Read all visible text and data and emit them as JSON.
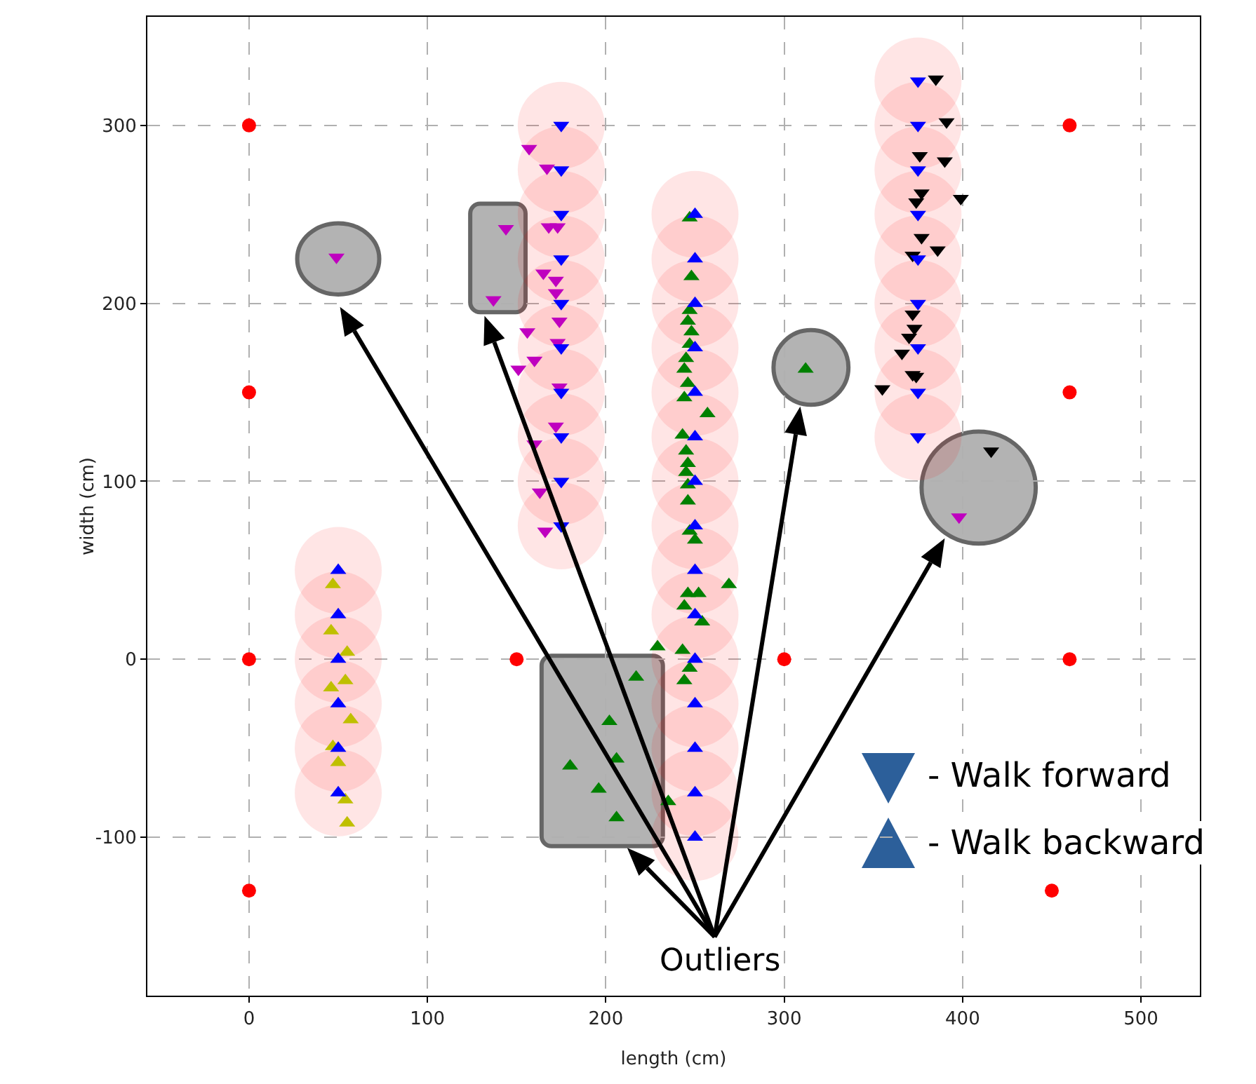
{
  "chart_data": {
    "type": "scatter",
    "xlabel": "length (cm)",
    "ylabel": "width (cm)",
    "xlim": [
      -57,
      533
    ],
    "ylim": [
      -189,
      361
    ],
    "xticks": [
      0,
      100,
      200,
      300,
      400,
      500
    ],
    "yticks": [
      -100,
      0,
      100,
      200,
      300
    ],
    "grid": true,
    "series": [
      {
        "type": "bubble",
        "color": "#ff0000",
        "marker": "circle",
        "x": [
          50,
          50,
          50,
          50,
          50,
          50,
          175,
          175,
          175,
          175,
          175,
          175,
          175,
          175,
          175,
          175,
          250,
          250,
          250,
          250,
          250,
          250,
          250,
          250,
          250,
          250,
          250,
          250,
          250,
          250,
          250,
          375,
          375,
          375,
          375,
          375,
          375,
          375,
          375,
          375
        ],
        "values": [
          50,
          25,
          0,
          -25,
          -50,
          -75,
          300,
          275,
          250,
          225,
          200,
          175,
          150,
          125,
          100,
          75,
          250,
          225,
          200,
          175,
          150,
          125,
          100,
          75,
          50,
          25,
          0,
          -25,
          -50,
          -75,
          -100,
          325,
          300,
          275,
          250,
          225,
          200,
          175,
          150,
          125
        ],
        "sizes": [
          1,
          1,
          1,
          1,
          1,
          1,
          1,
          1,
          1,
          1,
          1,
          1,
          1,
          1,
          1,
          1,
          1,
          1,
          1,
          1,
          1,
          1,
          1,
          1,
          1,
          1,
          1,
          1,
          1,
          1,
          1,
          1,
          1,
          1,
          1,
          1,
          1,
          1,
          1,
          1
        ]
      },
      {
        "color": "#ff0000",
        "marker": "circle",
        "x": [
          0,
          0,
          0,
          0,
          150,
          300,
          460,
          460,
          460,
          450
        ],
        "values": [
          300,
          150,
          0,
          -130,
          0,
          0,
          300,
          150,
          0,
          -130
        ]
      },
      {
        "color": "#bf00bf",
        "marker": "triangle-down",
        "x": [
          157,
          167,
          168,
          173,
          144,
          165,
          172,
          172,
          137,
          174,
          156,
          173,
          160,
          151,
          174,
          172,
          160,
          163,
          166,
          49,
          398
        ],
        "values": [
          287,
          276,
          243,
          243,
          242,
          217,
          213,
          206,
          202,
          190,
          184,
          178,
          168,
          163,
          153,
          131,
          121,
          94,
          72,
          226,
          80
        ]
      },
      {
        "color": "#000000",
        "marker": "triangle-down",
        "x": [
          385,
          391,
          376,
          390,
          377,
          399,
          374,
          377,
          386,
          372,
          372,
          373,
          370,
          366,
          372,
          374,
          355,
          416
        ],
        "values": [
          326,
          302,
          283,
          280,
          262,
          259,
          257,
          237,
          230,
          227,
          194,
          186,
          181,
          172,
          160,
          159,
          152,
          117
        ]
      },
      {
        "color": "#bfbf00",
        "marker": "triangle",
        "x": [
          47,
          46,
          55,
          54,
          46,
          57,
          47,
          50,
          54,
          55
        ],
        "values": [
          42,
          16,
          4,
          -12,
          -16,
          -34,
          -49,
          -58,
          -79,
          -92
        ]
      },
      {
        "color": "#008000",
        "marker": "triangle",
        "x": [
          247,
          248,
          247,
          246,
          248,
          247,
          245,
          244,
          246,
          244,
          257,
          243,
          245,
          246,
          245,
          246,
          246,
          247,
          250,
          269,
          246,
          252,
          244,
          254,
          229,
          243,
          247,
          244,
          235,
          217,
          202,
          206,
          180,
          196,
          206,
          312
        ],
        "values": [
          248,
          215,
          196,
          190,
          184,
          177,
          169,
          163,
          155,
          147,
          138,
          126,
          117,
          110,
          105,
          98,
          89,
          72,
          67,
          42,
          37,
          37,
          30,
          21,
          7,
          5,
          -5,
          -12,
          -80,
          -10,
          -35,
          -56,
          -60,
          -73,
          -89,
          163
        ]
      },
      {
        "color": "#0000ff",
        "marker": "triangle-down",
        "x": [
          175,
          175,
          175,
          175,
          175,
          175,
          175,
          175,
          175,
          175,
          375,
          375,
          375,
          375,
          375,
          375,
          375,
          375,
          375
        ],
        "values": [
          300,
          275,
          250,
          225,
          200,
          175,
          150,
          125,
          100,
          75,
          325,
          300,
          275,
          250,
          225,
          200,
          175,
          150,
          125
        ]
      },
      {
        "color": "#0000ff",
        "marker": "triangle",
        "x": [
          50,
          50,
          50,
          50,
          50,
          50,
          250,
          250,
          250,
          250,
          250,
          250,
          250,
          250,
          250,
          250,
          250,
          250,
          250,
          250,
          250
        ],
        "values": [
          50,
          25,
          0,
          -25,
          -50,
          -75,
          250,
          225,
          200,
          175,
          150,
          125,
          100,
          75,
          50,
          25,
          0,
          -25,
          -50,
          -75,
          -100
        ]
      }
    ],
    "annotations": [
      "Outliers",
      "- Walk forward",
      "- Walk backward"
    ]
  }
}
